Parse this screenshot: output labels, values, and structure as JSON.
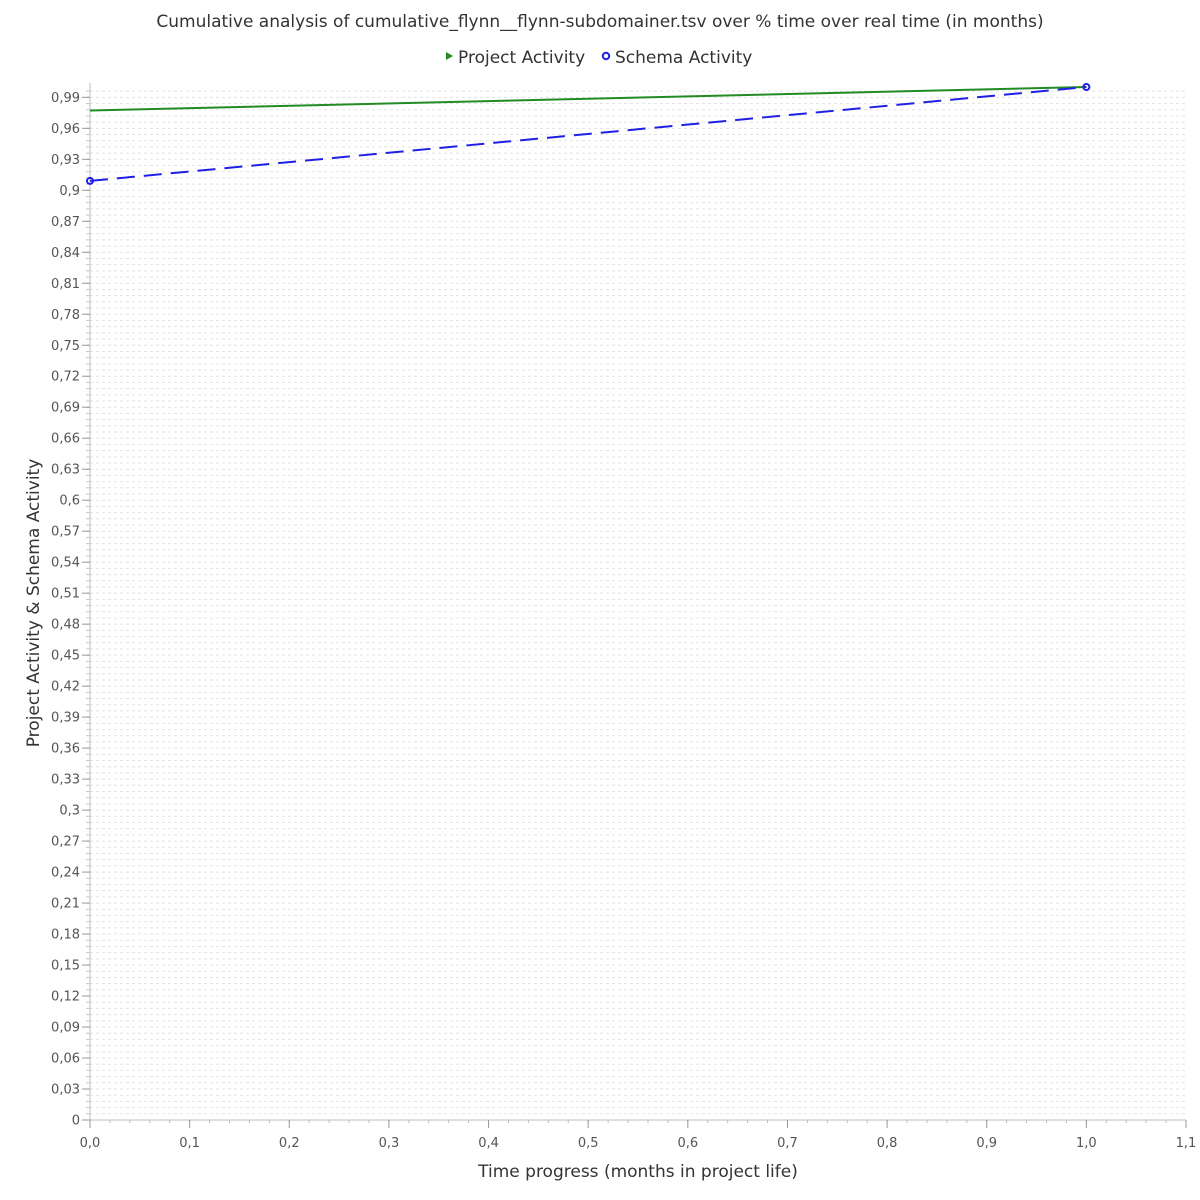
{
  "chart_data": {
    "type": "line",
    "title": "Cumulative analysis of cumulative_flynn__flynn-subdomainer.tsv over % time over real time (in months)",
    "xlabel": "Time progress (months in project life)",
    "ylabel": "Project Activity & Schema Activity",
    "xlim": [
      0,
      1.1
    ],
    "ylim": [
      0,
      1.0
    ],
    "x_ticks": [
      "0,0",
      "0,1",
      "0,2",
      "0,3",
      "0,4",
      "0,5",
      "0,6",
      "0,7",
      "0,8",
      "0,9",
      "1,0",
      "1,1"
    ],
    "y_ticks": [
      "0",
      "0,03",
      "0,06",
      "0,09",
      "0,12",
      "0,15",
      "0,18",
      "0,21",
      "0,24",
      "0,27",
      "0,3",
      "0,33",
      "0,36",
      "0,39",
      "0,42",
      "0,45",
      "0,48",
      "0,51",
      "0,54",
      "0,57",
      "0,6",
      "0,63",
      "0,66",
      "0,69",
      "0,72",
      "0,75",
      "0,78",
      "0,81",
      "0,84",
      "0,87",
      "0,9",
      "0,93",
      "0,96",
      "0,99"
    ],
    "grid": true,
    "legend_position": "top",
    "series": [
      {
        "name": "Project Activity",
        "color": "#228B22",
        "line_style": "solid",
        "marker": "triangle",
        "points": [
          {
            "x": 0.0,
            "y": 0.9772
          },
          {
            "x": 1.0,
            "y": 1.0
          }
        ]
      },
      {
        "name": "Schema Activity",
        "color": "#1F1FE6",
        "line_style": "dashed",
        "marker": "circle",
        "points": [
          {
            "x": 0.0,
            "y": 0.9091
          },
          {
            "x": 1.0,
            "y": 1.0
          }
        ]
      }
    ]
  }
}
